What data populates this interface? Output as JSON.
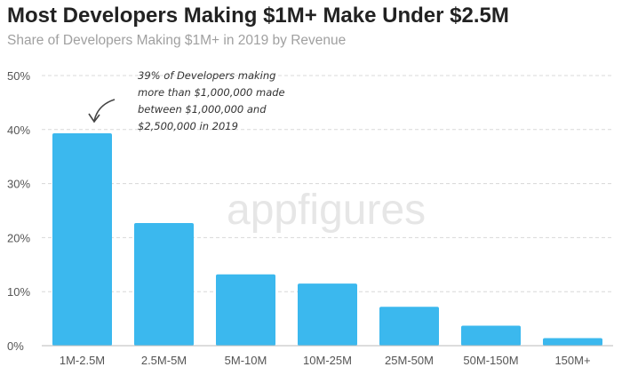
{
  "chart_data": {
    "type": "bar",
    "title": "Most Developers Making $1M+ Make Under $2.5M",
    "subtitle": "Share of Developers Making $1M+ in 2019 by Revenue",
    "xlabel": "",
    "ylabel": "",
    "categories": [
      "1M-2.5M",
      "2.5M-5M",
      "5M-10M",
      "10M-25M",
      "25M-50M",
      "50M-150M",
      "150M+"
    ],
    "values": [
      39.3,
      22.7,
      13.2,
      11.5,
      7.2,
      3.7,
      1.4
    ],
    "ylim": [
      0,
      50
    ],
    "yticks": [
      0,
      10,
      20,
      30,
      40,
      50
    ],
    "ytick_labels": [
      "0%",
      "10%",
      "20%",
      "30%",
      "40%",
      "50%"
    ],
    "grid": true,
    "bar_color": "#3bb8ee",
    "annotation": [
      "39% of Developers making",
      "more than $1,000,000 made",
      "between $1,000,000 and",
      "$2,500,000 in 2019"
    ],
    "watermark": "appfigures"
  }
}
